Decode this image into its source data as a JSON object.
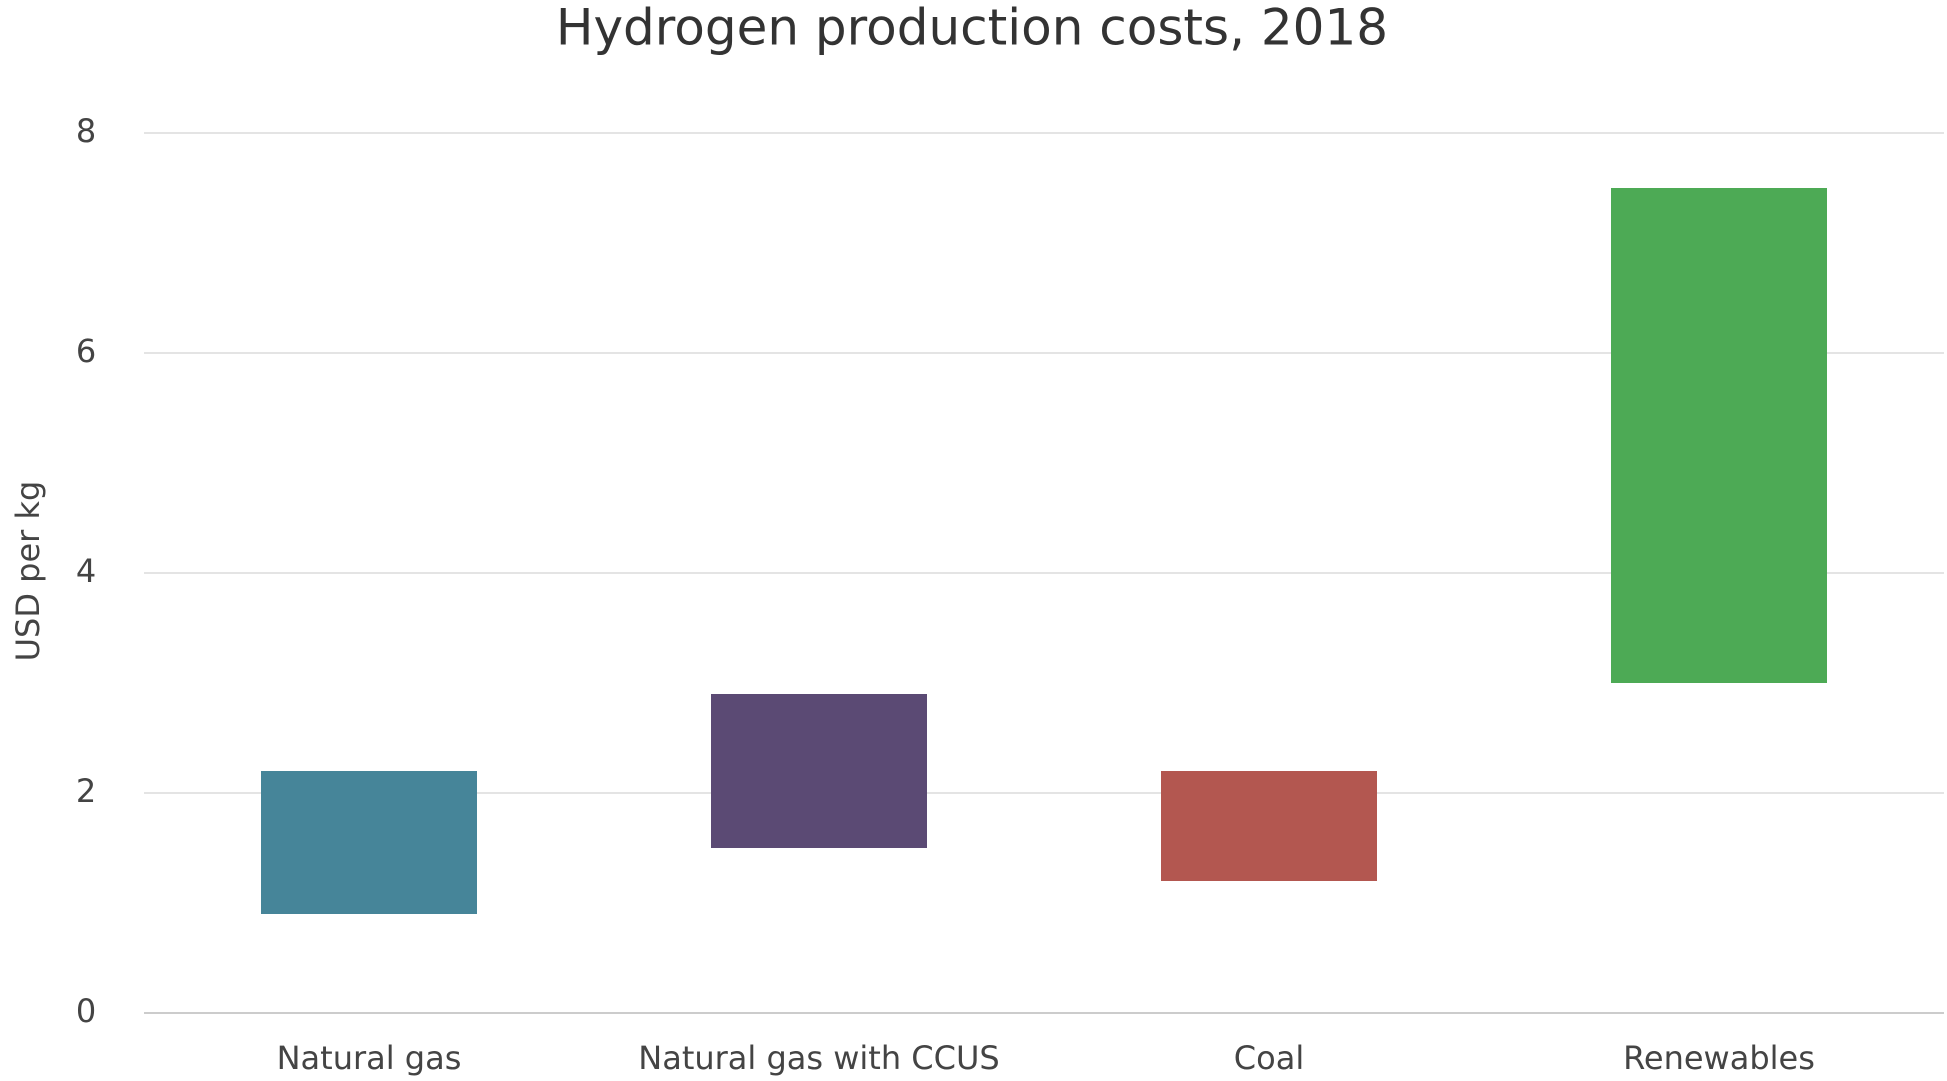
{
  "chart_data": {
    "type": "floating-bar",
    "title": "Hydrogen production costs, 2018",
    "ylabel": "USD per kg",
    "categories": [
      "Natural gas",
      "Natural gas with CCUS",
      "Coal",
      "Renewables"
    ],
    "low": [
      0.9,
      1.5,
      1.2,
      3.0
    ],
    "high": [
      2.2,
      2.9,
      2.2,
      7.5
    ],
    "colors": [
      "#468599",
      "#5b4a74",
      "#b35750",
      "#4daa55"
    ],
    "ylim": [
      0,
      8
    ],
    "yticks": [
      0,
      2,
      4,
      6,
      8
    ],
    "grid": true
  }
}
